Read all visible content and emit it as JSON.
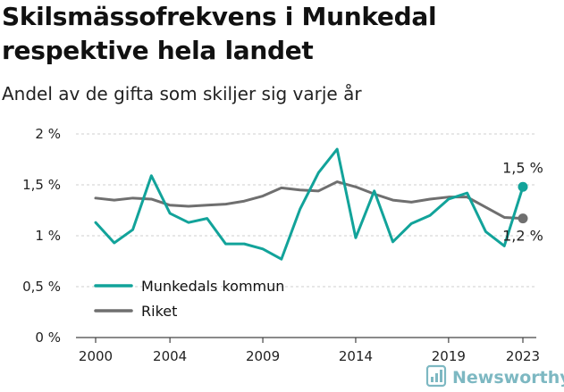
{
  "header": {
    "title": "Skilsmässofrekvens i Munkedal respektive hela landet",
    "subtitle": "Andel av de gifta som skiljer sig varje år"
  },
  "brand": {
    "name": "Newsworthy",
    "icon": "newsworthy-logo-icon",
    "color": "#7db8c2"
  },
  "colors": {
    "munkedal": "#12a39a",
    "riket": "#6f6f6f",
    "grid": "#cfcfcf",
    "axis": "#444444"
  },
  "chart_data": {
    "type": "line",
    "x": [
      2000,
      2001,
      2002,
      2003,
      2004,
      2005,
      2006,
      2007,
      2008,
      2009,
      2010,
      2011,
      2012,
      2013,
      2014,
      2015,
      2016,
      2017,
      2018,
      2019,
      2020,
      2021,
      2022,
      2023
    ],
    "x_ticks": [
      "2000",
      "2004",
      "2009",
      "2014",
      "2019",
      "2023"
    ],
    "x_tick_values": [
      2000,
      2004,
      2009,
      2014,
      2019,
      2023
    ],
    "y_ticks": [
      "0 %",
      "0,5 %",
      "1 %",
      "1,5 %",
      "2 %"
    ],
    "y_tick_values": [
      0,
      0.5,
      1,
      1.5,
      2
    ],
    "ylim": [
      0,
      2
    ],
    "xlim": [
      2000,
      2023
    ],
    "series": [
      {
        "name": "Munkedals kommun",
        "color": "#12a39a",
        "values": [
          1.13,
          0.93,
          1.06,
          1.59,
          1.22,
          1.13,
          1.17,
          0.92,
          0.92,
          0.87,
          0.77,
          1.26,
          1.62,
          1.85,
          0.98,
          1.44,
          0.94,
          1.12,
          1.2,
          1.36,
          1.42,
          1.04,
          0.9,
          1.48
        ],
        "end_label": "1,5 %"
      },
      {
        "name": "Riket",
        "color": "#6f6f6f",
        "values": [
          1.37,
          1.35,
          1.37,
          1.36,
          1.3,
          1.29,
          1.3,
          1.31,
          1.34,
          1.39,
          1.47,
          1.45,
          1.44,
          1.53,
          1.48,
          1.41,
          1.35,
          1.33,
          1.36,
          1.38,
          1.38,
          1.28,
          1.18,
          1.17
        ],
        "end_label": "1,2 %"
      }
    ],
    "legend": [
      "Munkedals kommun",
      "Riket"
    ],
    "legend_position": "bottom-left",
    "grid": true
  }
}
